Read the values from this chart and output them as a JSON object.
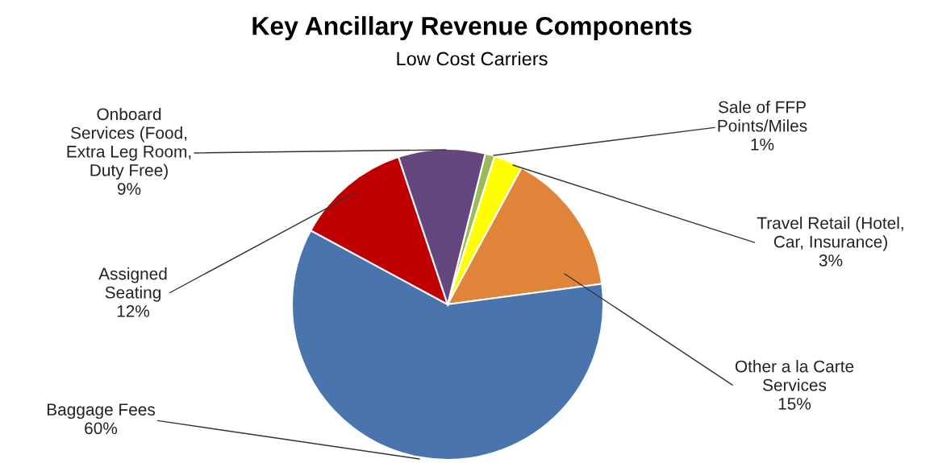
{
  "chart_data": {
    "type": "pie",
    "title": "Key Ancillary Revenue Components",
    "subtitle": "Low Cost Carriers",
    "categories": [
      "Sale of FFP\nPoints/Miles",
      "Travel Retail (Hotel,\nCar, Insurance)",
      "Other a la Carte\nServices",
      "Baggage Fees",
      "Assigned\nSeating",
      "Onboard\nServices (Food,\nExtra Leg Room,\nDuty Free)"
    ],
    "values": [
      1,
      3,
      15,
      60,
      12,
      9
    ],
    "value_labels": [
      "1%",
      "3%",
      "15%",
      "60%",
      "12%",
      "9%"
    ],
    "colors": [
      "#9bbb59",
      "#ffff00",
      "#e0843a",
      "#4a74ae",
      "#c00000",
      "#65467f"
    ],
    "legend": false
  }
}
